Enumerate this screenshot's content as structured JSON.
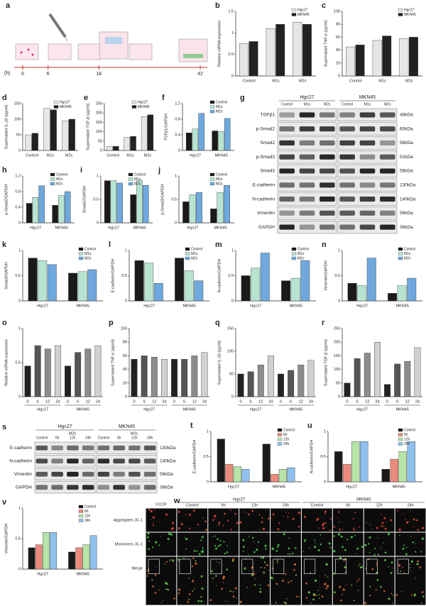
{
  "schematic": {
    "label": "a",
    "unit": "(h)",
    "times": [
      0,
      6,
      18,
      42
    ]
  },
  "chart_data": [
    {
      "type": "bar",
      "label": "b",
      "y_label": "Relative mRNA expression",
      "categories": [
        "Control",
        "M1s",
        "M2s"
      ],
      "series": [
        {
          "name": "Hgc27",
          "color": "#e6e6e6",
          "values": [
            0.75,
            1.1,
            1.25
          ]
        },
        {
          "name": "MKN45",
          "color": "#222222",
          "values": [
            0.8,
            1.2,
            1.2
          ]
        }
      ],
      "ylim": [
        0,
        1.5
      ],
      "yticks": [
        0,
        0.5,
        1,
        1.5
      ]
    },
    {
      "type": "bar",
      "label": "c",
      "y_label": "Supernatant TNF-α (pg/ml)",
      "categories": [
        "Control",
        "M1s",
        "M2s"
      ],
      "series": [
        {
          "name": "Hgc27",
          "color": "#e6e6e6",
          "values": [
            45,
            55,
            58
          ]
        },
        {
          "name": "MKN45",
          "color": "#222222",
          "values": [
            48,
            62,
            60
          ]
        }
      ],
      "ylim": [
        0,
        100
      ],
      "yticks": [
        0,
        20,
        40,
        60,
        80,
        100
      ]
    },
    {
      "type": "bar",
      "label": "d",
      "y_label": "Supernatant IL-10 (pg/ml)",
      "categories": [
        "Control",
        "M1s",
        "M2s"
      ],
      "series": [
        {
          "name": "Hgc27",
          "color": "#e6e6e6",
          "values": [
            50,
            135,
            95
          ]
        },
        {
          "name": "MKN45",
          "color": "#222222",
          "values": [
            55,
            130,
            100
          ]
        }
      ],
      "ylim": [
        0,
        150
      ],
      "yticks": [
        0,
        50,
        100,
        150
      ]
    },
    {
      "type": "bar",
      "label": "e",
      "y_label": "Supernatant TGF-β (pg/ml)",
      "categories": [
        "Control",
        "M1s",
        "M2s"
      ],
      "series": [
        {
          "name": "Hgc27",
          "color": "#e6e6e6",
          "values": [
            20,
            70,
            180
          ]
        },
        {
          "name": "MKN45",
          "color": "#222222",
          "values": [
            22,
            75,
            190
          ]
        }
      ],
      "ylim": [
        0,
        250
      ],
      "yticks": [
        0,
        50,
        100,
        150,
        200,
        250
      ]
    },
    {
      "type": "bar",
      "label": "f",
      "y_label": "TGFβ1/GAPDH",
      "categories": [
        "Hgc27",
        "MKN45"
      ],
      "series": [
        {
          "name": "Control",
          "color": "#1a1a1a",
          "values": [
            0.45,
            0.5
          ]
        },
        {
          "name": "M1s",
          "color": "#b7e4d0",
          "values": [
            0.55,
            0.48
          ]
        },
        {
          "name": "M2s",
          "color": "#6fa8dc",
          "values": [
            0.95,
            0.82
          ]
        }
      ],
      "ylim": [
        0,
        1.2
      ],
      "yticks": [
        0,
        0.4,
        0.8,
        1.2
      ]
    },
    {
      "type": "bar",
      "label": "h",
      "y_label": "p-Smad2/GAPDH",
      "categories": [
        "Hgc27",
        "MKN45"
      ],
      "series": [
        {
          "name": "Control",
          "color": "#1a1a1a",
          "values": [
            0.5,
            0.45
          ]
        },
        {
          "name": "M1s",
          "color": "#b7e4d0",
          "values": [
            0.65,
            0.7
          ]
        },
        {
          "name": "M2s",
          "color": "#6fa8dc",
          "values": [
            0.95,
            0.8
          ]
        }
      ],
      "ylim": [
        0,
        1.2
      ],
      "yticks": [
        0,
        0.4,
        0.8,
        1.2
      ]
    },
    {
      "type": "bar",
      "label": "i",
      "y_label": "Smad2/GAPDH",
      "categories": [
        "Hgc27",
        "MKN45"
      ],
      "series": [
        {
          "name": "Control",
          "color": "#1a1a1a",
          "values": [
            0.9,
            0.6
          ]
        },
        {
          "name": "M1s",
          "color": "#b7e4d0",
          "values": [
            0.9,
            0.9
          ]
        },
        {
          "name": "M2s",
          "color": "#6fa8dc",
          "values": [
            0.85,
            0.8
          ]
        }
      ],
      "ylim": [
        0,
        1
      ],
      "yticks": [
        0,
        0.5,
        1
      ]
    },
    {
      "type": "bar",
      "label": "j",
      "y_label": "p-Smad3/GAPDH",
      "categories": [
        "Hgc27",
        "MKN45"
      ],
      "series": [
        {
          "name": "Control",
          "color": "#1a1a1a",
          "values": [
            0.45,
            0.3
          ]
        },
        {
          "name": "M1s",
          "color": "#b7e4d0",
          "values": [
            0.6,
            0.65
          ]
        },
        {
          "name": "M2s",
          "color": "#6fa8dc",
          "values": [
            0.65,
            0.8
          ]
        }
      ],
      "ylim": [
        0,
        1
      ],
      "yticks": [
        0,
        0.5,
        1
      ]
    },
    {
      "type": "bar",
      "label": "k",
      "y_label": "Smad3/GAPDH",
      "categories": [
        "Hgc27",
        "MKN45"
      ],
      "series": [
        {
          "name": "Control",
          "color": "#1a1a1a",
          "values": [
            0.85,
            0.55
          ]
        },
        {
          "name": "M1s",
          "color": "#b7e4d0",
          "values": [
            0.8,
            0.58
          ]
        },
        {
          "name": "M2s",
          "color": "#6fa8dc",
          "values": [
            0.72,
            0.62
          ]
        }
      ],
      "ylim": [
        0,
        1
      ],
      "yticks": [
        0,
        0.5,
        1
      ]
    },
    {
      "type": "bar",
      "label": "l",
      "y_label": "E-cadherin/GAPDH",
      "categories": [
        "Hgc27",
        "MKN45"
      ],
      "series": [
        {
          "name": "Control",
          "color": "#1a1a1a",
          "values": [
            0.8,
            0.85
          ]
        },
        {
          "name": "M1s",
          "color": "#b7e4d0",
          "values": [
            0.75,
            0.6
          ]
        },
        {
          "name": "M2s",
          "color": "#6fa8dc",
          "values": [
            0.35,
            0.4
          ]
        }
      ],
      "ylim": [
        0,
        1
      ],
      "yticks": [
        0,
        0.5,
        1
      ]
    },
    {
      "type": "bar",
      "label": "m",
      "y_label": "N-cadherin/GAPDH",
      "categories": [
        "Hgc27",
        "MKN45"
      ],
      "series": [
        {
          "name": "Control",
          "color": "#1a1a1a",
          "values": [
            0.5,
            0.4
          ]
        },
        {
          "name": "M1s",
          "color": "#b7e4d0",
          "values": [
            0.65,
            0.45
          ]
        },
        {
          "name": "M2s",
          "color": "#6fa8dc",
          "values": [
            0.95,
            0.8
          ]
        }
      ],
      "ylim": [
        0,
        1
      ],
      "yticks": [
        0,
        0.5,
        1
      ]
    },
    {
      "type": "bar",
      "label": "n",
      "y_label": "Vimentin/GAPDH",
      "categories": [
        "Hgc27",
        "MKN45"
      ],
      "series": [
        {
          "name": "Control",
          "color": "#1a1a1a",
          "values": [
            0.35,
            0.15
          ]
        },
        {
          "name": "M1s",
          "color": "#b7e4d0",
          "values": [
            0.3,
            0.3
          ]
        },
        {
          "name": "M2s",
          "color": "#6fa8dc",
          "values": [
            0.85,
            0.45
          ]
        }
      ],
      "ylim": [
        0,
        1
      ],
      "yticks": [
        0,
        0.5,
        1
      ]
    },
    {
      "type": "bar",
      "label": "o",
      "y_label": "Relative mRNA expression",
      "categories": [
        "0",
        "6",
        "12",
        "24",
        "0",
        "6",
        "12",
        "24"
      ],
      "group_labels": [
        "Hgc27",
        "MKN45"
      ],
      "values": [
        0.45,
        0.75,
        0.7,
        0.75,
        0.45,
        0.65,
        0.7,
        0.75
      ],
      "colors": [
        "#222222",
        "#555555",
        "#8c8c8c",
        "#d0d0d0",
        "#222222",
        "#555555",
        "#8c8c8c",
        "#d0d0d0"
      ],
      "ylim": [
        0,
        1
      ],
      "yticks": [
        0,
        0.5,
        1
      ]
    },
    {
      "type": "bar",
      "label": "p",
      "y_label": "Supernatant TNF-α (pg/ml)",
      "categories": [
        "0",
        "6",
        "12",
        "24",
        "0",
        "6",
        "12",
        "24"
      ],
      "group_labels": [
        "Hgc27",
        "MKN45"
      ],
      "values": [
        55,
        60,
        58,
        55,
        55,
        55,
        60,
        65
      ],
      "colors": [
        "#222222",
        "#555555",
        "#8c8c8c",
        "#d0d0d0",
        "#222222",
        "#555555",
        "#8c8c8c",
        "#d0d0d0"
      ],
      "ylim": [
        0,
        100
      ],
      "yticks": [
        0,
        20,
        40,
        60,
        80,
        100
      ]
    },
    {
      "type": "bar",
      "label": "q",
      "y_label": "Supernatant IL-10 (pg/ml)",
      "categories": [
        "0",
        "6",
        "12",
        "24",
        "0",
        "6",
        "12",
        "24"
      ],
      "group_labels": [
        "Hgc27",
        "MKN45"
      ],
      "values": [
        50,
        55,
        70,
        90,
        50,
        58,
        70,
        80
      ],
      "colors": [
        "#222222",
        "#555555",
        "#8c8c8c",
        "#d0d0d0",
        "#222222",
        "#555555",
        "#8c8c8c",
        "#d0d0d0"
      ],
      "ylim": [
        0,
        150
      ],
      "yticks": [
        0,
        50,
        100,
        150
      ]
    },
    {
      "type": "bar",
      "label": "r",
      "y_label": "Supernatant TGF-β (pg/ml)",
      "categories": [
        "0",
        "6",
        "12",
        "24",
        "0",
        "6",
        "12",
        "24"
      ],
      "group_labels": [
        "Hgc27",
        "MKN45"
      ],
      "values": [
        50,
        140,
        160,
        200,
        45,
        120,
        130,
        180
      ],
      "colors": [
        "#222222",
        "#555555",
        "#8c8c8c",
        "#d0d0d0",
        "#222222",
        "#555555",
        "#8c8c8c",
        "#d0d0d0"
      ],
      "ylim": [
        0,
        250
      ],
      "yticks": [
        0,
        50,
        100,
        150,
        200,
        250
      ]
    },
    {
      "type": "bar",
      "label": "t",
      "y_label": "E-cadherin/GAPDH",
      "categories": [
        "Hgc27",
        "MKN45"
      ],
      "series": [
        {
          "name": "Control",
          "color": "#1a1a1a",
          "values": [
            0.85,
            0.75
          ]
        },
        {
          "name": "6h",
          "color": "#ea8a7c",
          "values": [
            0.35,
            0.15
          ]
        },
        {
          "name": "12h",
          "color": "#b7e4a8",
          "values": [
            0.3,
            0.25
          ]
        },
        {
          "name": "24h",
          "color": "#8fc1ec",
          "values": [
            0.25,
            0.28
          ]
        }
      ],
      "ylim": [
        0,
        1
      ],
      "yticks": [
        0,
        0.5,
        1
      ]
    },
    {
      "type": "bar",
      "label": "u",
      "y_label": "N-cadherin/GAPDH",
      "categories": [
        "Hgc27",
        "MKN45"
      ],
      "series": [
        {
          "name": "Control",
          "color": "#1a1a1a",
          "values": [
            0.6,
            0.25
          ]
        },
        {
          "name": "6h",
          "color": "#ea8a7c",
          "values": [
            0.35,
            0.45
          ]
        },
        {
          "name": "12h",
          "color": "#b7e4a8",
          "values": [
            0.8,
            0.6
          ]
        },
        {
          "name": "24h",
          "color": "#8fc1ec",
          "values": [
            0.8,
            0.8
          ]
        }
      ],
      "ylim": [
        0,
        1
      ],
      "yticks": [
        0,
        0.5,
        1
      ]
    },
    {
      "type": "bar",
      "label": "v",
      "y_label": "Vimentin/GAPDH",
      "categories": [
        "Hgc27",
        "MKN45"
      ],
      "series": [
        {
          "name": "Control",
          "color": "#1a1a1a",
          "values": [
            0.35,
            0.28
          ]
        },
        {
          "name": "6h",
          "color": "#ea8a7c",
          "values": [
            0.4,
            0.35
          ]
        },
        {
          "name": "12h",
          "color": "#b7e4a8",
          "values": [
            0.6,
            0.4
          ]
        },
        {
          "name": "24h",
          "color": "#8fc1ec",
          "values": [
            0.6,
            0.55
          ]
        }
      ],
      "ylim": [
        0,
        1
      ],
      "yticks": [
        0,
        0.5,
        1
      ]
    }
  ],
  "blots": [
    {
      "label": "g",
      "groups": [
        {
          "name": "Hgc27",
          "lanes": [
            "Control",
            "M1s",
            "M2s"
          ]
        },
        {
          "name": "MKN45",
          "lanes": [
            "Control",
            "M1s",
            "M2s"
          ]
        }
      ],
      "proteins": [
        {
          "name": "TGFβ1",
          "size": "48kDa"
        },
        {
          "name": "p-Smad2",
          "size": "60kDa"
        },
        {
          "name": "Smad2",
          "size": "58kDa"
        },
        {
          "name": "p-Smad3",
          "size": "52kDa"
        },
        {
          "name": "Smad3",
          "size": "58kDa"
        },
        {
          "name": "E-cadherin",
          "size": "130kDa"
        },
        {
          "name": "N-cadherin",
          "size": "140kDa"
        },
        {
          "name": "Vimentin",
          "size": "56kDa"
        },
        {
          "name": "GAPDH",
          "size": "36kDa"
        }
      ]
    },
    {
      "label": "s",
      "groups": [
        {
          "name": "Hgc27",
          "treatment": "M2s",
          "lanes": [
            "Control",
            "6h",
            "12h",
            "24h"
          ]
        },
        {
          "name": "MKN45",
          "treatment": "M2s",
          "lanes": [
            "Control",
            "6h",
            "12h",
            "24h"
          ]
        }
      ],
      "proteins": [
        {
          "name": "E-cadherin",
          "size": "130kDa"
        },
        {
          "name": "N-cadherin",
          "size": "140kDa"
        },
        {
          "name": "Vimentin",
          "size": "56kDa"
        },
        {
          "name": "GAPDH",
          "size": "36kDa"
        }
      ]
    }
  ],
  "microscopy": {
    "label": "w",
    "control_label": "CCCP",
    "groups": [
      {
        "name": "Hgc27",
        "columns": [
          "Control",
          "6h",
          "12h",
          "24h"
        ]
      },
      {
        "name": "MKN45",
        "columns": [
          "Control",
          "6h",
          "12h",
          "24h"
        ]
      }
    ],
    "rows": [
      "Aggregates JC-1",
      "Monomers JC-1",
      "Merge"
    ]
  }
}
